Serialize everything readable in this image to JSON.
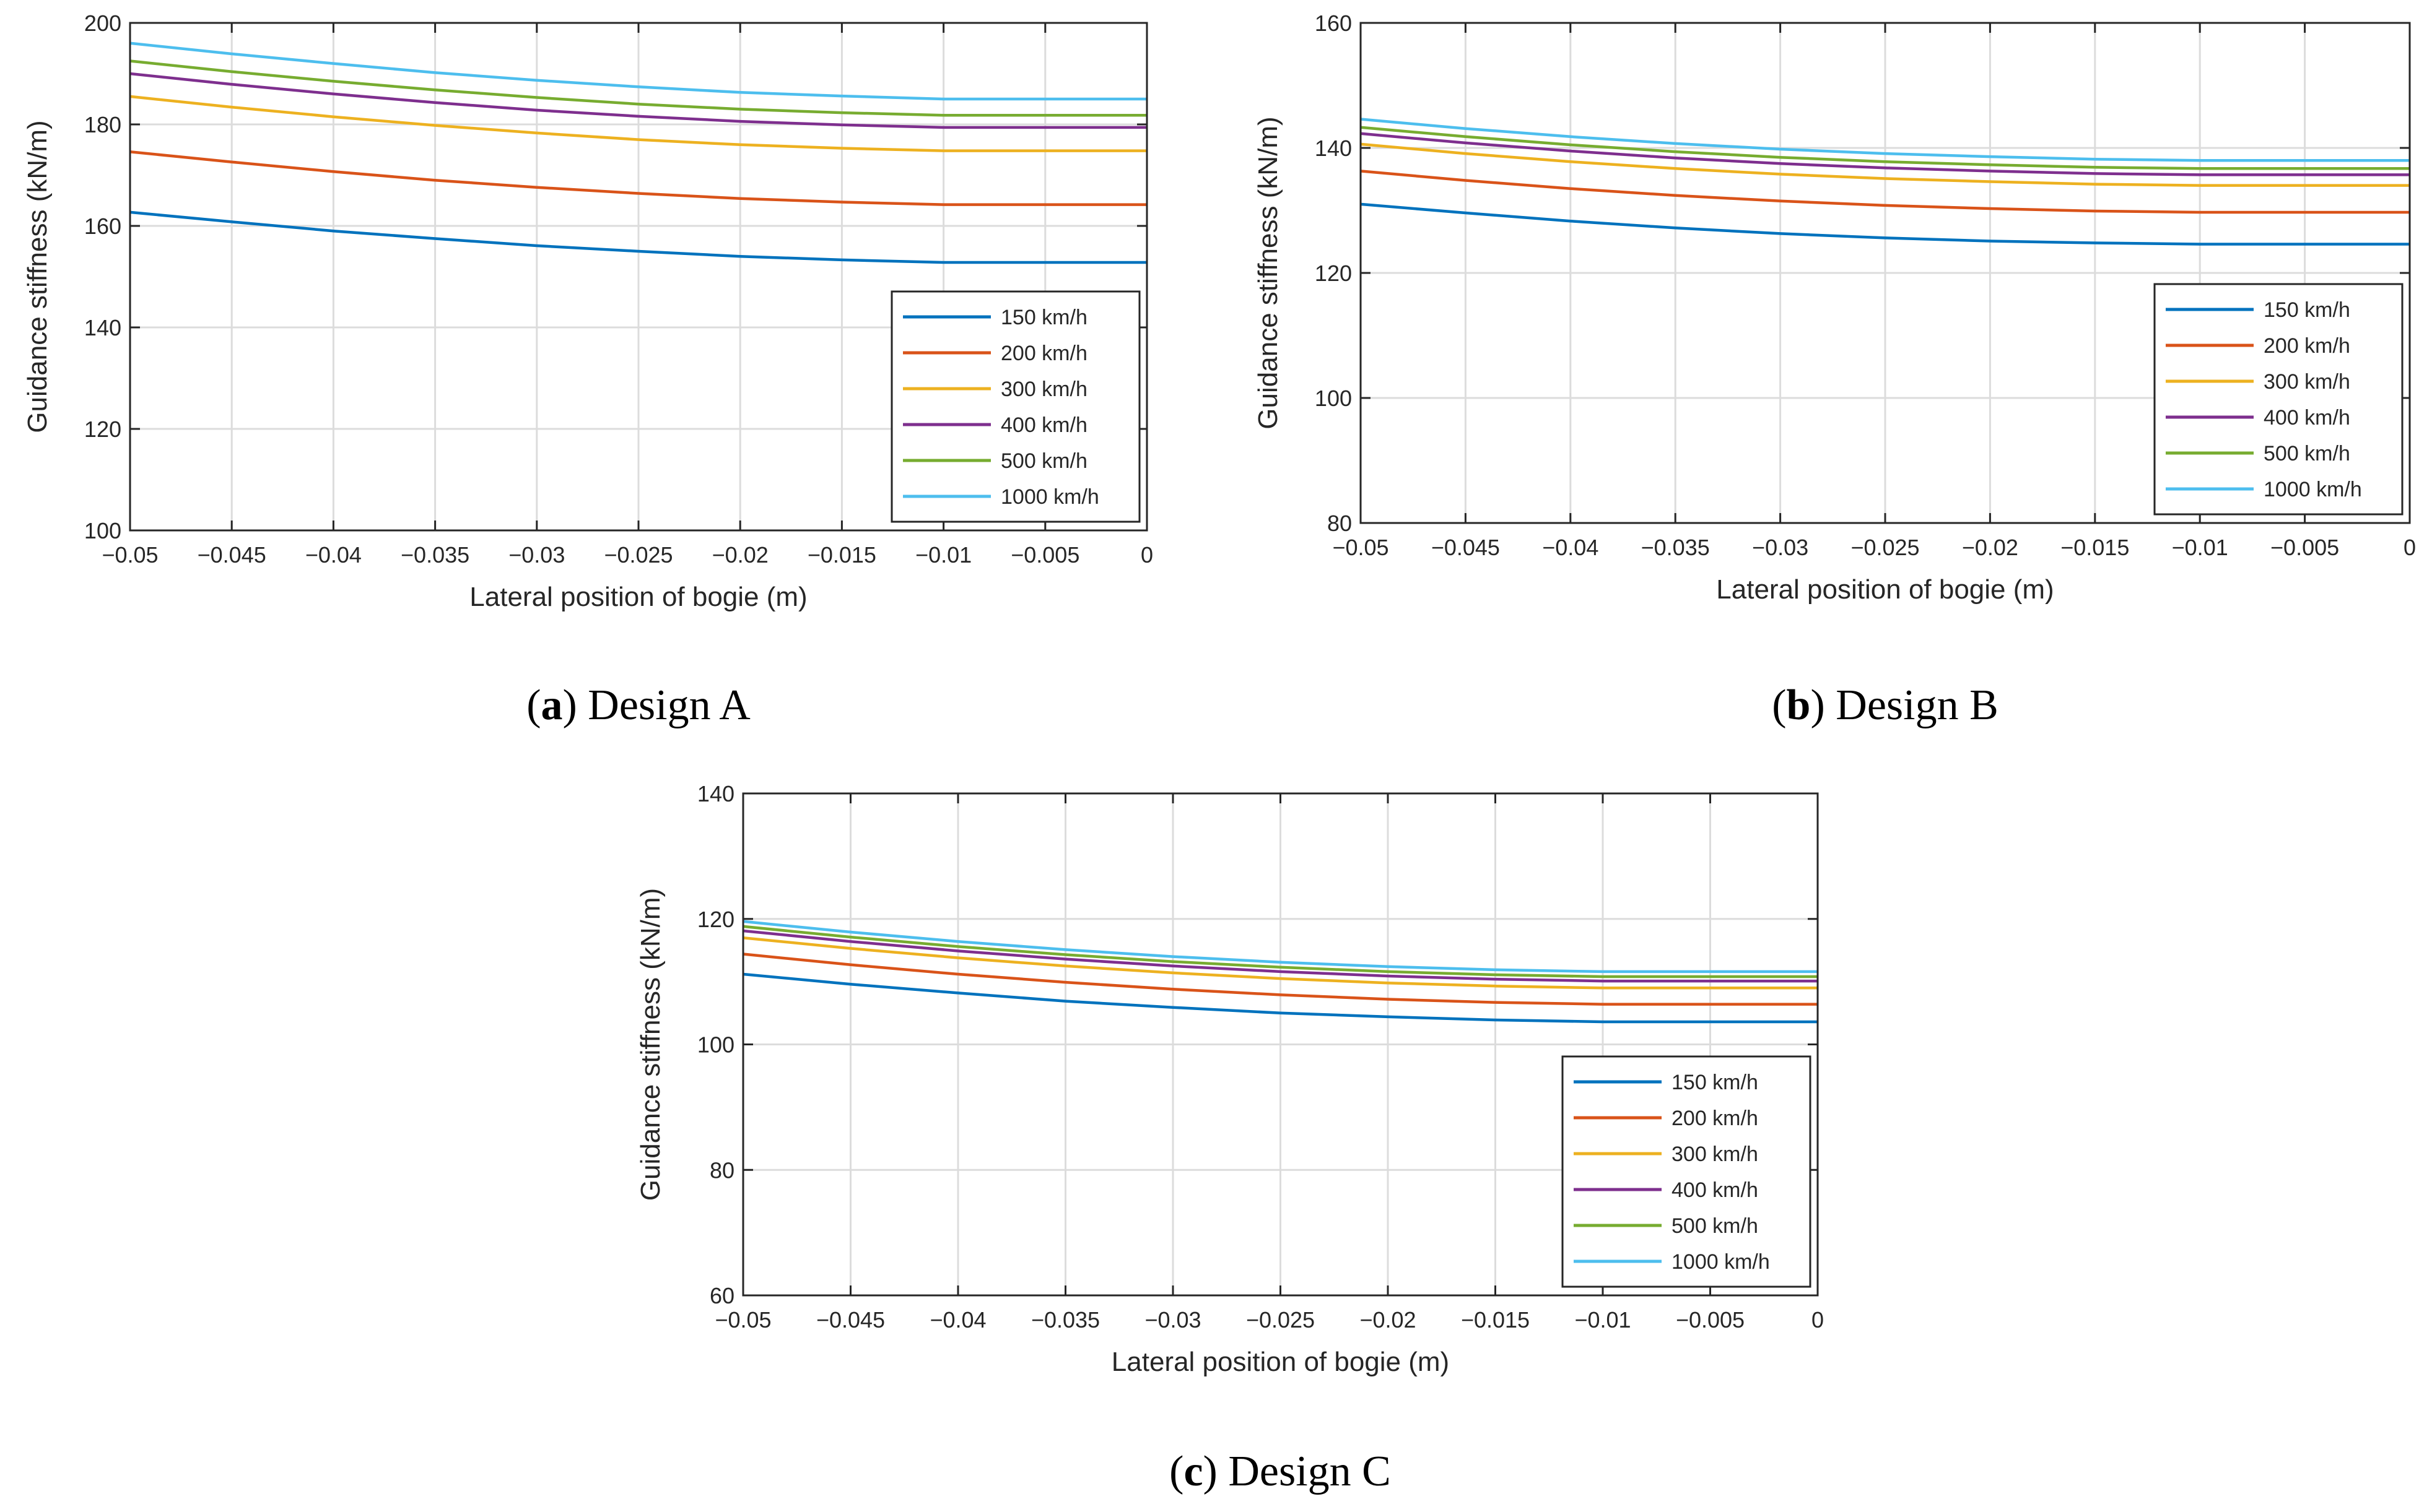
{
  "colors": {
    "s150": "#0072BD",
    "s200": "#D95319",
    "s300": "#EDB120",
    "s400": "#7E2F8E",
    "s500": "#77AC30",
    "s1000": "#4DBEEE",
    "grid": "#DCDCDC",
    "axis": "#262626"
  },
  "chart_data": [
    {
      "type": "line",
      "panel": "a",
      "caption_letter": "a",
      "caption_text": "Design A",
      "xlabel": "Lateral position of bogie (m)",
      "ylabel": "Guidance stiffness (kN/m)",
      "xlim": [
        -0.05,
        0
      ],
      "ylim": [
        100,
        200
      ],
      "xticks": [
        "−0.05",
        "−0.045",
        "−0.04",
        "−0.035",
        "−0.03",
        "−0.025",
        "−0.02",
        "−0.015",
        "−0.01",
        "−0.005",
        "0"
      ],
      "yticks": [
        "100",
        "120",
        "140",
        "160",
        "180",
        "200"
      ],
      "grid": true,
      "legend_position": "lower-right",
      "x": [
        -0.05,
        -0.045,
        -0.04,
        -0.035,
        -0.03,
        -0.025,
        -0.02,
        -0.015,
        -0.01,
        -0.005,
        0
      ],
      "series": [
        {
          "name": "150 km/h",
          "color_key": "s150",
          "values": [
            162.7,
            160.8,
            159.0,
            157.5,
            156.1,
            155.0,
            154.0,
            153.3,
            152.8,
            152.8,
            152.8
          ]
        },
        {
          "name": "200 km/h",
          "color_key": "s200",
          "values": [
            174.6,
            172.6,
            170.7,
            169.0,
            167.6,
            166.4,
            165.4,
            164.7,
            164.2,
            164.2,
            164.2
          ]
        },
        {
          "name": "300 km/h",
          "color_key": "s300",
          "values": [
            185.5,
            183.4,
            181.5,
            179.8,
            178.3,
            177.0,
            176.0,
            175.3,
            174.8,
            174.8,
            174.8
          ]
        },
        {
          "name": "400 km/h",
          "color_key": "s400",
          "values": [
            190.0,
            187.9,
            186.0,
            184.3,
            182.8,
            181.6,
            180.6,
            179.9,
            179.4,
            179.4,
            179.4
          ]
        },
        {
          "name": "500 km/h",
          "color_key": "s500",
          "values": [
            192.5,
            190.4,
            188.5,
            186.8,
            185.3,
            184.0,
            183.0,
            182.3,
            181.8,
            181.8,
            181.8
          ]
        },
        {
          "name": "1000 km/h",
          "color_key": "s1000",
          "values": [
            196.0,
            193.9,
            192.0,
            190.2,
            188.7,
            187.4,
            186.3,
            185.6,
            185.0,
            185.0,
            185.0
          ]
        }
      ]
    },
    {
      "type": "line",
      "panel": "b",
      "caption_letter": "b",
      "caption_text": "Design B",
      "xlabel": "Lateral position of bogie (m)",
      "ylabel": "Guidance stiffness (kN/m)",
      "xlim": [
        -0.05,
        0
      ],
      "ylim": [
        80,
        160
      ],
      "xticks": [
        "−0.05",
        "−0.045",
        "−0.04",
        "−0.035",
        "−0.03",
        "−0.025",
        "−0.02",
        "−0.015",
        "−0.01",
        "−0.005",
        "0"
      ],
      "yticks": [
        "80",
        "100",
        "120",
        "140",
        "160"
      ],
      "grid": true,
      "legend_position": "lower-right",
      "x": [
        -0.05,
        -0.045,
        -0.04,
        -0.035,
        -0.03,
        -0.025,
        -0.02,
        -0.015,
        -0.01,
        -0.005,
        0
      ],
      "series": [
        {
          "name": "150 km/h",
          "color_key": "s150",
          "values": [
            131.0,
            129.6,
            128.3,
            127.2,
            126.3,
            125.6,
            125.1,
            124.8,
            124.6,
            124.6,
            124.6
          ]
        },
        {
          "name": "200 km/h",
          "color_key": "s200",
          "values": [
            136.3,
            134.8,
            133.5,
            132.4,
            131.5,
            130.8,
            130.3,
            129.9,
            129.7,
            129.7,
            129.7
          ]
        },
        {
          "name": "300 km/h",
          "color_key": "s300",
          "values": [
            140.6,
            139.1,
            137.8,
            136.7,
            135.8,
            135.1,
            134.6,
            134.2,
            134.0,
            134.0,
            134.0
          ]
        },
        {
          "name": "400 km/h",
          "color_key": "s400",
          "values": [
            142.3,
            140.8,
            139.5,
            138.4,
            137.5,
            136.8,
            136.3,
            135.9,
            135.7,
            135.7,
            135.7
          ]
        },
        {
          "name": "500 km/h",
          "color_key": "s500",
          "values": [
            143.3,
            141.8,
            140.5,
            139.4,
            138.5,
            137.8,
            137.3,
            136.9,
            136.7,
            136.7,
            136.7
          ]
        },
        {
          "name": "1000 km/h",
          "color_key": "s1000",
          "values": [
            144.6,
            143.1,
            141.8,
            140.7,
            139.8,
            139.1,
            138.6,
            138.2,
            138.0,
            138.0,
            138.0
          ]
        }
      ]
    },
    {
      "type": "line",
      "panel": "c",
      "caption_letter": "c",
      "caption_text": "Design C",
      "xlabel": "Lateral position of bogie (m)",
      "ylabel": "Guidance stiffness (kN/m)",
      "xlim": [
        -0.05,
        0
      ],
      "ylim": [
        60,
        140
      ],
      "xticks": [
        "−0.05",
        "−0.045",
        "−0.04",
        "−0.035",
        "−0.03",
        "−0.025",
        "−0.02",
        "−0.015",
        "−0.01",
        "−0.005",
        "0"
      ],
      "yticks": [
        "60",
        "80",
        "100",
        "120",
        "140"
      ],
      "grid": true,
      "legend_position": "lower-right",
      "x": [
        -0.05,
        -0.045,
        -0.04,
        -0.035,
        -0.03,
        -0.025,
        -0.02,
        -0.015,
        -0.01,
        -0.005,
        0
      ],
      "series": [
        {
          "name": "150 km/h",
          "color_key": "s150",
          "values": [
            111.2,
            109.6,
            108.2,
            106.9,
            105.9,
            105.0,
            104.4,
            103.9,
            103.6,
            103.6,
            103.6
          ]
        },
        {
          "name": "200 km/h",
          "color_key": "s200",
          "values": [
            114.4,
            112.7,
            111.2,
            109.9,
            108.8,
            107.9,
            107.2,
            106.7,
            106.4,
            106.4,
            106.4
          ]
        },
        {
          "name": "300 km/h",
          "color_key": "s300",
          "values": [
            117.0,
            115.3,
            113.8,
            112.5,
            111.4,
            110.5,
            109.8,
            109.3,
            109.0,
            109.0,
            109.0
          ]
        },
        {
          "name": "400 km/h",
          "color_key": "s400",
          "values": [
            118.1,
            116.4,
            114.9,
            113.6,
            112.5,
            111.6,
            110.9,
            110.4,
            110.1,
            110.1,
            110.1
          ]
        },
        {
          "name": "500 km/h",
          "color_key": "s500",
          "values": [
            118.8,
            117.1,
            115.6,
            114.3,
            113.2,
            112.3,
            111.6,
            111.1,
            110.8,
            110.8,
            110.8
          ]
        },
        {
          "name": "1000 km/h",
          "color_key": "s1000",
          "values": [
            119.6,
            117.9,
            116.4,
            115.1,
            114.0,
            113.1,
            112.4,
            111.9,
            111.6,
            111.6,
            111.6
          ]
        }
      ]
    }
  ]
}
